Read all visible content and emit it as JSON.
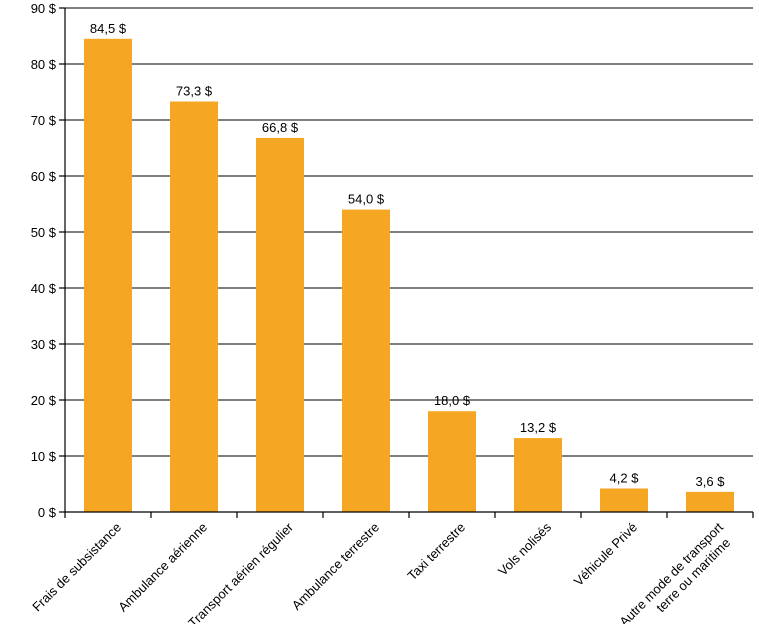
{
  "chart_data": {
    "type": "bar",
    "categories": [
      [
        "Frais de subsistance"
      ],
      [
        "Ambulance aérienne"
      ],
      [
        "Transport aérien régulier"
      ],
      [
        "Ambulance terrestre"
      ],
      [
        "Taxi terrestre"
      ],
      [
        "Vols nolisés"
      ],
      [
        "Véhicule Privé"
      ],
      [
        "Autre mode de transport",
        "terre ou maritime"
      ]
    ],
    "values": [
      84.5,
      73.3,
      66.8,
      54.0,
      18.0,
      13.2,
      4.2,
      3.6
    ],
    "data_labels": [
      "84,5 $",
      "73,3 $",
      "66,8 $",
      "54,0 $",
      "18,0 $",
      "13,2 $",
      "4,2 $",
      "3,6 $"
    ],
    "y_ticks": [
      0,
      10,
      20,
      30,
      40,
      50,
      60,
      70,
      80,
      90
    ],
    "y_tick_labels": [
      "0 $",
      "10 $",
      "20 $",
      "30 $",
      "40 $",
      "50 $",
      "60 $",
      "70 $",
      "80 $",
      "90 $"
    ],
    "ylim": [
      0,
      90
    ],
    "grid": true,
    "bar_color": "#F5A623",
    "title": "",
    "xlabel": "",
    "ylabel": ""
  }
}
